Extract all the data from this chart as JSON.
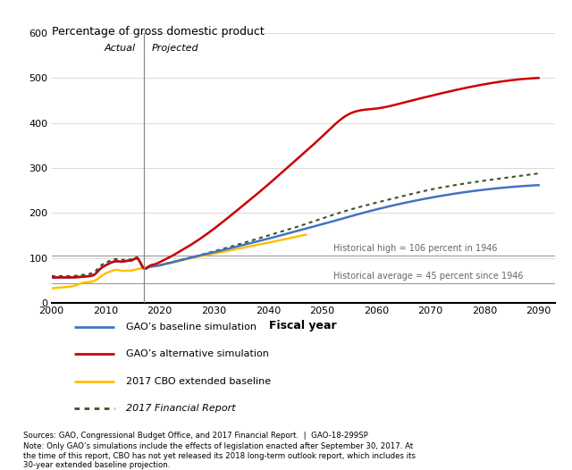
{
  "title": "Percentage of gross domestic product",
  "xlabel": "Fiscal year",
  "xlim": [
    2000,
    2093
  ],
  "ylim": [
    0,
    600
  ],
  "yticks": [
    0,
    100,
    200,
    300,
    400,
    500,
    600
  ],
  "xticks": [
    2000,
    2010,
    2020,
    2030,
    2040,
    2050,
    2060,
    2070,
    2080,
    2090
  ],
  "vertical_line_x": 2017,
  "actual_label": "Actual",
  "projected_label": "Projected",
  "hist_high": 106,
  "hist_high_label": "Historical high = 106 percent in 1946",
  "hist_avg": 45,
  "hist_avg_label": "Historical average = 45 percent since 1946",
  "source_text": "Sources: GAO, Congressional Budget Office, and 2017 Financial Report.  |  GAO-18-299SP",
  "note_text": "Note: Only GAO’s simulations include the effects of legislation enacted after September 30, 2017. At\nthe time of this report, CBO has not yet released its 2018 long-term outlook report, which includes its\n30-year extended baseline projection.",
  "legend_entries": [
    {
      "label": "GAO’s baseline simulation",
      "color": "#4472C4",
      "linestyle": "solid",
      "linewidth": 2,
      "italic": false
    },
    {
      "label": "GAO’s alternative simulation",
      "color": "#CC0000",
      "linestyle": "solid",
      "linewidth": 2,
      "italic": false
    },
    {
      "label": "2017 CBO extended baseline",
      "color": "#FFC000",
      "linestyle": "solid",
      "linewidth": 2,
      "italic": false
    },
    {
      "label": "2017 Financial Report",
      "color": "#375623",
      "linestyle": "dotted",
      "linewidth": 2,
      "italic": true
    }
  ],
  "gao_baseline_x": [
    2000,
    2001,
    2002,
    2003,
    2004,
    2005,
    2006,
    2007,
    2008,
    2009,
    2010,
    2011,
    2012,
    2013,
    2014,
    2015,
    2016,
    2017,
    2018,
    2019,
    2020,
    2021,
    2022,
    2023,
    2024,
    2025,
    2030,
    2035,
    2040,
    2045,
    2050,
    2055,
    2060,
    2065,
    2070,
    2075,
    2080,
    2085,
    2090
  ],
  "gao_baseline_y": [
    57,
    57,
    57,
    57,
    57,
    58,
    59,
    60,
    64,
    76,
    84,
    90,
    93,
    92,
    94,
    96,
    98,
    78,
    80,
    82,
    84,
    87,
    90,
    93,
    96,
    99,
    113,
    128,
    143,
    159,
    175,
    192,
    208,
    222,
    234,
    244,
    252,
    258,
    262
  ],
  "gao_alternative_x": [
    2000,
    2001,
    2002,
    2003,
    2004,
    2005,
    2006,
    2007,
    2008,
    2009,
    2010,
    2011,
    2012,
    2013,
    2014,
    2015,
    2016,
    2017,
    2018,
    2019,
    2020,
    2021,
    2022,
    2023,
    2024,
    2025,
    2030,
    2035,
    2040,
    2045,
    2050,
    2055,
    2060,
    2065,
    2070,
    2075,
    2080,
    2085,
    2090
  ],
  "gao_alternative_y": [
    57,
    57,
    57,
    57,
    57,
    58,
    59,
    60,
    64,
    76,
    84,
    90,
    93,
    92,
    94,
    96,
    98,
    78,
    82,
    86,
    91,
    97,
    103,
    110,
    117,
    124,
    165,
    213,
    263,
    316,
    370,
    420,
    432,
    445,
    460,
    474,
    486,
    495,
    500
  ],
  "cbo_baseline_x": [
    2000,
    2001,
    2002,
    2003,
    2004,
    2005,
    2006,
    2007,
    2008,
    2009,
    2010,
    2011,
    2012,
    2013,
    2014,
    2015,
    2016,
    2017,
    2018,
    2019,
    2020,
    2021,
    2022,
    2023,
    2024,
    2025,
    2030,
    2035,
    2040,
    2045,
    2047
  ],
  "cbo_baseline_y": [
    33,
    34,
    35,
    36,
    38,
    42,
    46,
    47,
    50,
    58,
    66,
    71,
    74,
    72,
    72,
    73,
    76,
    78,
    80,
    82,
    84,
    87,
    89,
    92,
    95,
    98,
    110,
    122,
    134,
    147,
    152
  ],
  "financial_report_x": [
    2000,
    2001,
    2002,
    2003,
    2004,
    2005,
    2006,
    2007,
    2008,
    2009,
    2010,
    2011,
    2012,
    2013,
    2014,
    2015,
    2016,
    2017,
    2018,
    2019,
    2020,
    2021,
    2022,
    2023,
    2024,
    2025,
    2030,
    2035,
    2040,
    2045,
    2050,
    2055,
    2060,
    2065,
    2070,
    2075,
    2080,
    2085,
    2090
  ],
  "financial_report_y": [
    60,
    60,
    60,
    60,
    60,
    62,
    63,
    65,
    70,
    82,
    90,
    95,
    98,
    96,
    97,
    98,
    100,
    78,
    80,
    82,
    84,
    87,
    90,
    93,
    96,
    99,
    115,
    132,
    150,
    168,
    188,
    207,
    223,
    238,
    252,
    263,
    272,
    280,
    288
  ]
}
